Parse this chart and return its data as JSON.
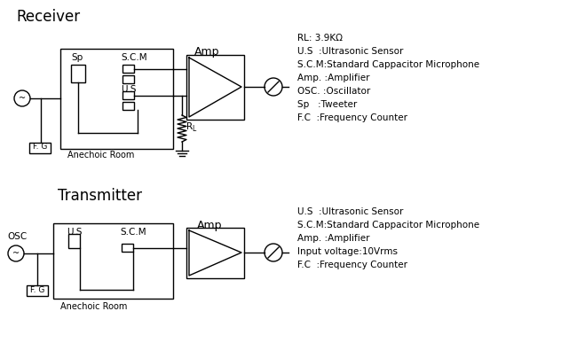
{
  "bg_color": "#ffffff",
  "title_receiver": "Receiver",
  "title_transmitter": "Transmitter",
  "legend_rx": [
    "RL: 3.9KΩ",
    "U.S  :Ultrasonic Sensor",
    "S.C.M:Standard Cappacitor Microphone",
    "Amp. :Amplifier",
    "OSC. :Oscillator",
    "Sp   :Tweeter",
    "F.C  :Frequency Counter"
  ],
  "legend_tx": [
    "U.S  :Ultrasonic Sensor",
    "S.C.M:Standard Cappacitor Microphone",
    "Amp. :Amplifier",
    "Input voltage:10Vrms",
    "F.C  :Frequency Counter"
  ]
}
